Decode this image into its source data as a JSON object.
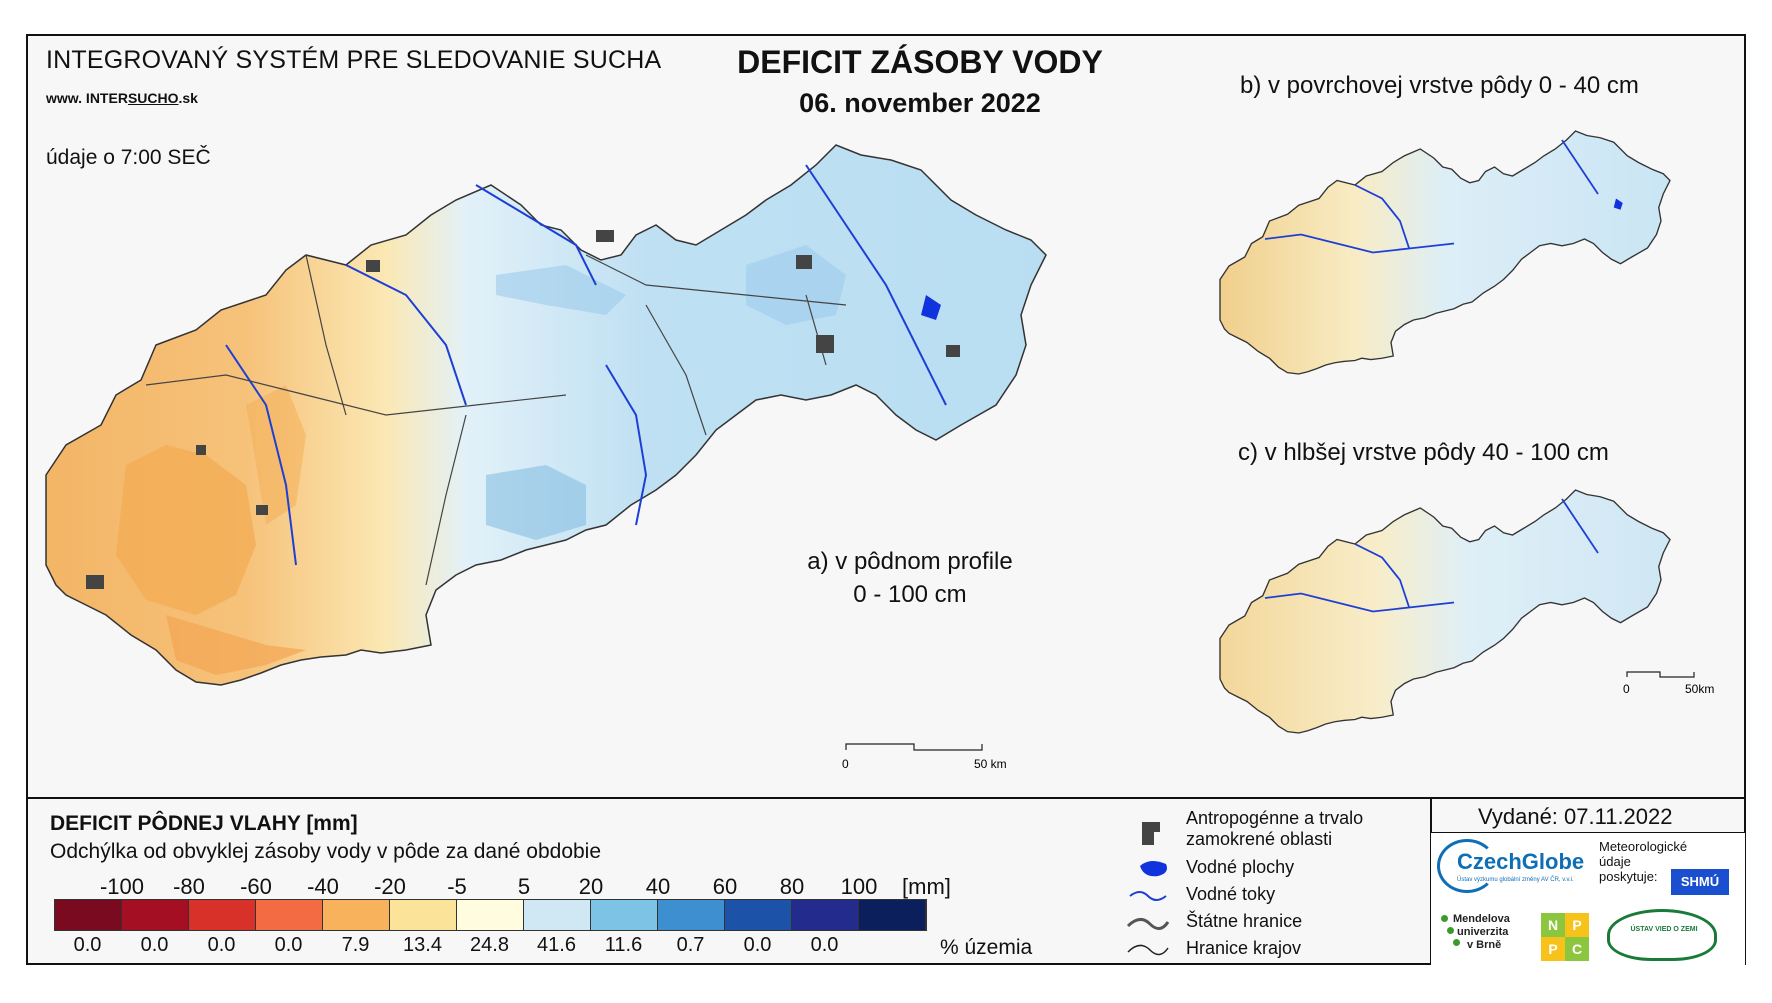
{
  "header": {
    "system_title": "INTEGROVANÝ SYSTÉM PRE SLEDOVANIE SUCHA",
    "site_prefix": "www. INTER",
    "site_underlined": "SUCHO",
    "site_suffix": ".sk",
    "time_note": "údaje o 7:00 SEČ",
    "main_title": "DEFICIT ZÁSOBY VODY",
    "date": "06. november 2022"
  },
  "panels": {
    "a_line1": "a) v pôdnom profile",
    "a_line2": "0 - 100 cm",
    "b": "b) v povrchovej vrstve pôdy 0 - 40 cm",
    "c": "c) v hlbšej vrstve pôdy 40 - 100 cm"
  },
  "scalebars": {
    "main_zero": "0",
    "main_end": "50 km",
    "inset_zero": "0",
    "inset_end": "50km"
  },
  "legend": {
    "title": "DEFICIT PÔDNEJ VLAHY [mm]",
    "subtitle": "Odchýlka od obvyklej zásoby vody v pôde za dané obdobie",
    "unit": "[mm]",
    "pct_unit": "% územia",
    "ticks": [
      "-100",
      "-80",
      "-60",
      "-40",
      "-20",
      "-5",
      "5",
      "20",
      "40",
      "60",
      "80",
      "100"
    ],
    "colors": [
      "#7a0a20",
      "#a50f24",
      "#d7312a",
      "#f26b42",
      "#f9b25c",
      "#fbe39a",
      "#fffce0",
      "#cfe8f4",
      "#7cc3e6",
      "#3d8fd0",
      "#1c52a8",
      "#232b8c",
      "#0b1f5c"
    ],
    "percentages": [
      "0.0",
      "0.0",
      "0.0",
      "0.0",
      "7.9",
      "13.4",
      "24.8",
      "41.6",
      "11.6",
      "0.7",
      "0.0",
      "0.0"
    ]
  },
  "map_key": {
    "urban_l1": "Antropogénne a trvalo",
    "urban_l2": "zamokrené oblasti",
    "water_bodies": "Vodné plochy",
    "rivers": "Vodné toky",
    "state_border": "Štátne hranice",
    "region_border": "Hranice krajov"
  },
  "issued": {
    "label": "Vydané: 07.11.2022",
    "czechglobe": "CzechGlobe",
    "czechglobe_sub": "Ústav výzkumu globální změny AV ČR, v.v.i.",
    "meteo_l1": "Meteorologické",
    "meteo_l2": "údaje",
    "meteo_l3": "poskytuje:",
    "shmu": "SHMÚ",
    "mendel_l1": "Mendelova",
    "mendel_l2": "univerzita",
    "mendel_l3": "v Brně",
    "nppc": [
      "N",
      "P",
      "P",
      "C"
    ],
    "uvz": "ÚSTAV VIED O ZEMI"
  }
}
